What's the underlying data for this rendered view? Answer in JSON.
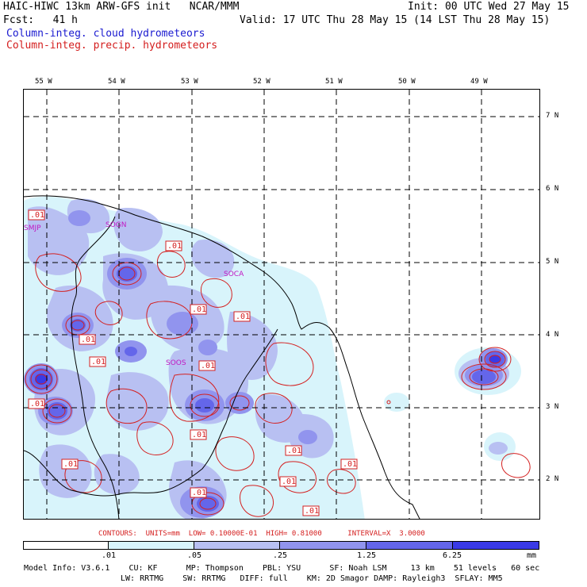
{
  "header": {
    "title_left": "HAIC-HIWC 13km ARW-GFS init   NCAR/MMM",
    "init": "Init: 00 UTC Wed 27 May 15",
    "fcst": "Fcst:   41 h",
    "valid": "Valid: 17 UTC Thu 28 May 15 (14 LST Thu 28 May 15)",
    "legend_cloud": "Column-integ. cloud hydrometeors",
    "legend_precip": "Column-integ. precip. hydrometeors"
  },
  "colors": {
    "cloud_label": "#1a1ad0",
    "precip_label": "#d41e1e",
    "shade_1": "#d8f4fb",
    "shade_2": "#b8c0f2",
    "shade_3": "#9194ee",
    "shade_4": "#6466ea",
    "shade_5": "#3a3ae6",
    "contour": "#d42020",
    "station": "#c218c2"
  },
  "map": {
    "lon_labels": [
      "55 W",
      "54 W",
      "53 W",
      "52 W",
      "51 W",
      "50 W",
      "49 W"
    ],
    "lat_labels": [
      "7 N",
      "6 N",
      "5 N",
      "4 N",
      "3 N",
      "2 N"
    ],
    "stations": [
      "SMJP",
      "SOGN",
      "SOCA",
      "SOOS"
    ],
    "contour_label": ".01"
  },
  "contours_info": "CONTOURS:  UNITS=mm  LOW= 0.10000E-01  HIGH= 0.81000      INTERVAL=X  3.0000",
  "colorbar": {
    "ticks": [
      ".01",
      ".05",
      ".25",
      "1.25",
      "6.25"
    ],
    "units": "mm"
  },
  "footer": {
    "line1": "Model Info: V3.6.1    CU: KF      MP: Thompson    PBL: YSU      SF: Noah LSM     13 km    51 levels   60 sec",
    "line2": "LW: RRTMG    SW: RRTMG   DIFF: full    KM: 2D Smagor DAMP: Rayleigh3  SFLAY: MM5"
  }
}
